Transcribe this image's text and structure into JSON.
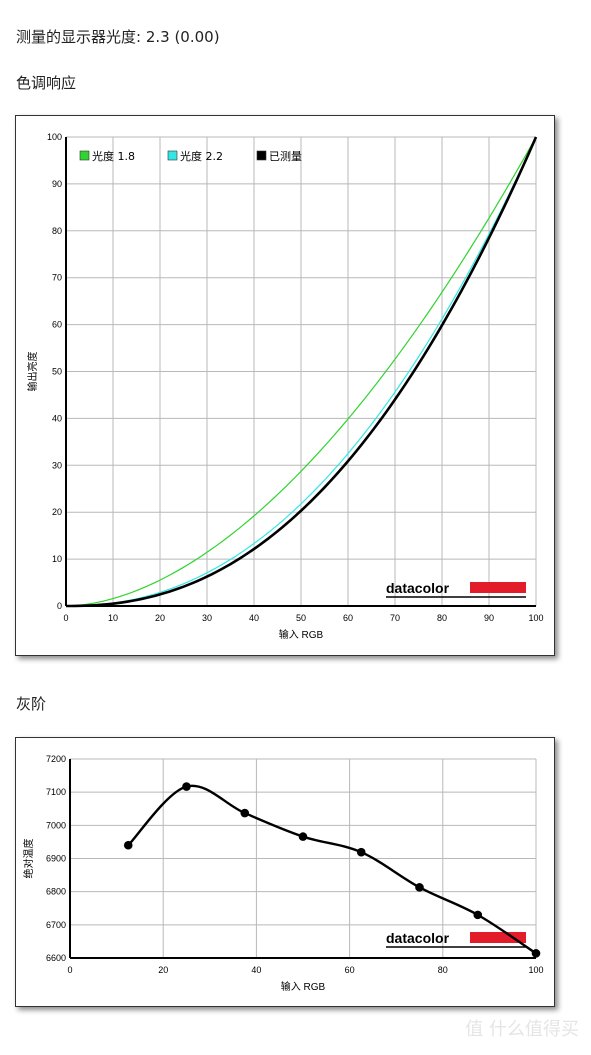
{
  "header": {
    "measured_gamma": "测量的显示器光度:  2.3 (0.00)",
    "tone_title": "色调响应",
    "gray_title": "灰阶"
  },
  "brand": {
    "name": "datacolor",
    "bar_color": "#e31c2a"
  },
  "watermark": "值 什么值得买",
  "chart_data": [
    {
      "type": "line",
      "title": "色调响应",
      "xlabel": "输入 RGB",
      "ylabel": "输出亮度",
      "xlim": [
        0,
        100
      ],
      "ylim": [
        0,
        100
      ],
      "xticks": [
        "0",
        "10",
        "20",
        "30",
        "40",
        "50",
        "60",
        "70",
        "80",
        "90",
        "100"
      ],
      "yticks": [
        "0",
        "10",
        "20",
        "30",
        "40",
        "50",
        "60",
        "70",
        "80",
        "90",
        "100"
      ],
      "grid": true,
      "legend_position": "top-left",
      "series": [
        {
          "name": "光度 1.8",
          "gamma": 1.8,
          "color": "#2fd42f"
        },
        {
          "name": "光度 2.2",
          "gamma": 2.2,
          "color": "#33e6e6"
        },
        {
          "name": "已测量",
          "gamma": 2.3,
          "color": "#000000"
        }
      ]
    },
    {
      "type": "line",
      "title": "灰阶",
      "xlabel": "输入 RGB",
      "ylabel": "绝对温度",
      "xlim": [
        0,
        100
      ],
      "ylim": [
        6600,
        7200
      ],
      "xticks": [
        "0",
        "20",
        "40",
        "60",
        "80",
        "100"
      ],
      "yticks": [
        "6600",
        "6700",
        "6800",
        "6900",
        "7000",
        "7100",
        "7200"
      ],
      "grid": true,
      "series": [
        {
          "name": "",
          "color": "#000000",
          "x": [
            12.5,
            25,
            37.5,
            50,
            62.5,
            75,
            87.5,
            100
          ],
          "y": [
            6940,
            7117,
            7037,
            6966,
            6919,
            6813,
            6730,
            6614
          ]
        }
      ]
    }
  ]
}
